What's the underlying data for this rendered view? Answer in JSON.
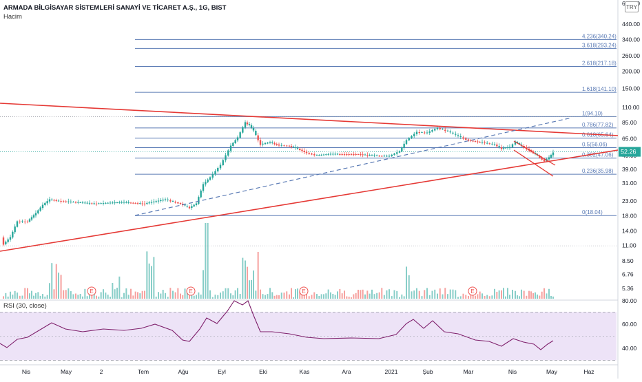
{
  "header": {
    "title": "ARMADA BİLGİSAYAR SİSTEMLERİ SANAYİ VE TİCARET A.Ş., 1G, BIST",
    "volume_label": "Hacim",
    "currency": "TRY"
  },
  "rsi_label": "RSI (30, close)",
  "price_axis": {
    "scale": "log",
    "ticks": [
      "600.00",
      "440.00",
      "340.00",
      "260.00",
      "200.00",
      "150.00",
      "110.00",
      "85.00",
      "65.00",
      "49.00",
      "39.00",
      "31.00",
      "23.00",
      "18.00",
      "14.00",
      "11.00",
      "8.50",
      "6.76",
      "5.36"
    ],
    "last_price": "52.26",
    "last_price_color": "#26a69a"
  },
  "rsi_axis": {
    "ticks": [
      "80.00",
      "60.00",
      "40.00"
    ]
  },
  "time_axis": {
    "labels": [
      "Nis",
      "May",
      "2",
      "Tem",
      "Ağu",
      "Eyl",
      "Eki",
      "Kas",
      "Ara",
      "2021",
      "Şub",
      "Mar",
      "Nis",
      "May",
      "Haz"
    ]
  },
  "fib_levels": [
    {
      "label": "4.236(340.24)",
      "price": 340.24
    },
    {
      "label": "3.618(293.24)",
      "price": 293.24
    },
    {
      "label": "2.618(217.18)",
      "price": 217.18
    },
    {
      "label": "1.618(141.10)",
      "price": 141.1
    },
    {
      "label": "1(94.10)",
      "price": 94.1
    },
    {
      "label": "0.786(77.82)",
      "price": 77.82
    },
    {
      "label": "0.618(65.64)",
      "price": 65.64
    },
    {
      "label": "0.5(56.06)",
      "price": 56.06
    },
    {
      "label": "0.382(47.06)",
      "price": 47.06
    },
    {
      "label": "0.236(35.98)",
      "price": 35.98
    },
    {
      "label": "0(18.04)",
      "price": 18.04
    }
  ],
  "earnings_marker": "E",
  "colors": {
    "up": "#26a69a",
    "down": "#ef5350",
    "trend": "#e53935",
    "fib": "#5b7bb5",
    "rsi_line": "#7e1f6b",
    "rsi_band": "#ede3f7"
  },
  "chart_data": {
    "type": "candlestick",
    "title": "ARMADA BİLGİSAYAR SİSTEMLERİ SANAYİ VE TİCARET A.Ş., 1G, BIST",
    "series": [
      {
        "name": "Price",
        "close_path": [
          [
            "Mar-2020",
            9.6
          ],
          [
            "Nis-2020",
            11.5
          ],
          [
            "Nis-2020",
            13.6
          ],
          [
            "May-2020",
            17.5
          ],
          [
            "May-2020",
            20.5
          ],
          [
            "Haz-2020",
            20.3
          ],
          [
            "Haz-2020",
            19.8
          ],
          [
            "Tem-2020",
            19.9
          ],
          [
            "Tem-2020",
            20.3
          ],
          [
            "Ağu-2020",
            19.0
          ],
          [
            "Ağu-2020",
            21.0
          ],
          [
            "Ağu-2020",
            28.0
          ],
          [
            "Eyl-2020",
            38.0
          ],
          [
            "Eyl-2020",
            60.0
          ],
          [
            "Eyl-2020",
            85.0
          ],
          [
            "Eyl-2020",
            78.0
          ],
          [
            "Eki-2020",
            60.0
          ],
          [
            "Eki-2020",
            55.0
          ],
          [
            "Kas-2020",
            50.0
          ],
          [
            "Kas-2020",
            48.0
          ],
          [
            "Ara-2020",
            48.5
          ],
          [
            "Ara-2020",
            49.0
          ],
          [
            "Oca-2021",
            56.0
          ],
          [
            "Oca-2021",
            68.0
          ],
          [
            "Şub-2021",
            72.0
          ],
          [
            "Şub-2021",
            68.0
          ],
          [
            "Mar-2021",
            63.0
          ],
          [
            "Mar-2021",
            58.0
          ],
          [
            "Nis-2021",
            55.0
          ],
          [
            "Nis-2021",
            50.0
          ],
          [
            "Nis-2021",
            47.0
          ],
          [
            "May-2021",
            52.26
          ]
        ]
      },
      {
        "name": "Hacim"
      },
      {
        "name": "RSI (30, close)",
        "values": [
          [
            "Mar-2020",
            46
          ],
          [
            "Nis-2020",
            53
          ],
          [
            "May-2020",
            66
          ],
          [
            "Haz-2020",
            60
          ],
          [
            "Tem-2020",
            57
          ],
          [
            "Ağu-2020",
            49
          ],
          [
            "Ağu-2020",
            60
          ],
          [
            "Eyl-2020",
            68
          ],
          [
            "Eyl-2020",
            82
          ],
          [
            "Eki-2020",
            63
          ],
          [
            "Kas-2020",
            52
          ],
          [
            "Ara-2020",
            51
          ],
          [
            "Oca-2021",
            57
          ],
          [
            "Şub-2021",
            66
          ],
          [
            "Mar-2021",
            53
          ],
          [
            "Nis-2021",
            49
          ],
          [
            "Nis-2021",
            40
          ],
          [
            "May-2021",
            46
          ]
        ]
      }
    ],
    "ylim": [
      5.0,
      600.0
    ],
    "rsi_ylim": [
      30,
      85
    ],
    "rsi_band": [
      30,
      70
    ],
    "xlabel": "",
    "ylabel": ""
  }
}
